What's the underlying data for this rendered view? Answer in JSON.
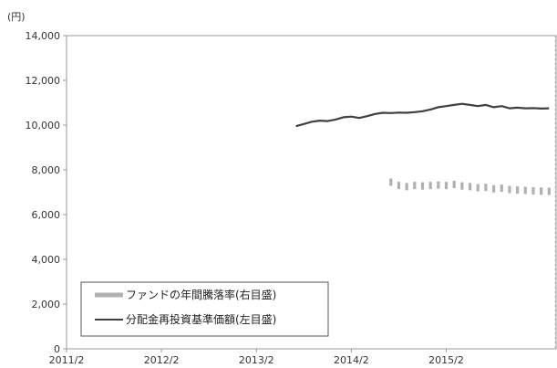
{
  "chart_data": {
    "type": "line",
    "unit_label": "(円)",
    "title": "",
    "xlabel": "",
    "ylabel": "",
    "x_ticks": [
      "2011/2",
      "2012/2",
      "2013/2",
      "2014/2",
      "2015/2"
    ],
    "x_range": [
      "2011-02",
      "2016-04"
    ],
    "ylim": [
      0,
      14000
    ],
    "y_ticks": [
      "0",
      "2,000",
      "4,000",
      "6,000",
      "8,000",
      "10,000",
      "12,000",
      "14,000"
    ],
    "grid": false,
    "legend_position": "bottom-left",
    "legend": [
      "ファンドの年間騰落率(右目盛)",
      "分配金再投資基準価額(左目盛)"
    ],
    "series": [
      {
        "name": "分配金再投資基準価額(左目盛)",
        "kind": "line",
        "color": "#404040",
        "points": [
          [
            "2013-07",
            9950
          ],
          [
            "2013-08",
            10050
          ],
          [
            "2013-09",
            10150
          ],
          [
            "2013-10",
            10200
          ],
          [
            "2013-11",
            10180
          ],
          [
            "2013-12",
            10250
          ],
          [
            "2014-01",
            10350
          ],
          [
            "2014-02",
            10380
          ],
          [
            "2014-03",
            10320
          ],
          [
            "2014-04",
            10400
          ],
          [
            "2014-05",
            10500
          ],
          [
            "2014-06",
            10550
          ],
          [
            "2014-07",
            10540
          ],
          [
            "2014-08",
            10560
          ],
          [
            "2014-09",
            10550
          ],
          [
            "2014-10",
            10580
          ],
          [
            "2014-11",
            10620
          ],
          [
            "2014-12",
            10700
          ],
          [
            "2015-01",
            10800
          ],
          [
            "2015-02",
            10850
          ],
          [
            "2015-03",
            10900
          ],
          [
            "2015-04",
            10950
          ],
          [
            "2015-05",
            10900
          ],
          [
            "2015-06",
            10850
          ],
          [
            "2015-07",
            10900
          ],
          [
            "2015-08",
            10800
          ],
          [
            "2015-09",
            10850
          ],
          [
            "2015-10",
            10750
          ],
          [
            "2015-11",
            10780
          ],
          [
            "2015-12",
            10750
          ],
          [
            "2016-01",
            10760
          ],
          [
            "2016-02",
            10740
          ],
          [
            "2016-03",
            10750
          ]
        ]
      },
      {
        "name": "ファンドの年間騰落率(右目盛)",
        "kind": "bar",
        "color": "#b0b0b0",
        "points": [
          [
            "2014-07",
            7450
          ],
          [
            "2014-08",
            7300
          ],
          [
            "2014-09",
            7250
          ],
          [
            "2014-10",
            7300
          ],
          [
            "2014-11",
            7280
          ],
          [
            "2014-12",
            7300
          ],
          [
            "2015-01",
            7320
          ],
          [
            "2015-02",
            7300
          ],
          [
            "2015-03",
            7350
          ],
          [
            "2015-04",
            7280
          ],
          [
            "2015-05",
            7250
          ],
          [
            "2015-06",
            7200
          ],
          [
            "2015-07",
            7220
          ],
          [
            "2015-08",
            7150
          ],
          [
            "2015-09",
            7180
          ],
          [
            "2015-10",
            7120
          ],
          [
            "2015-11",
            7100
          ],
          [
            "2015-12",
            7080
          ],
          [
            "2016-01",
            7060
          ],
          [
            "2016-02",
            7050
          ],
          [
            "2016-03",
            7040
          ]
        ]
      }
    ]
  }
}
